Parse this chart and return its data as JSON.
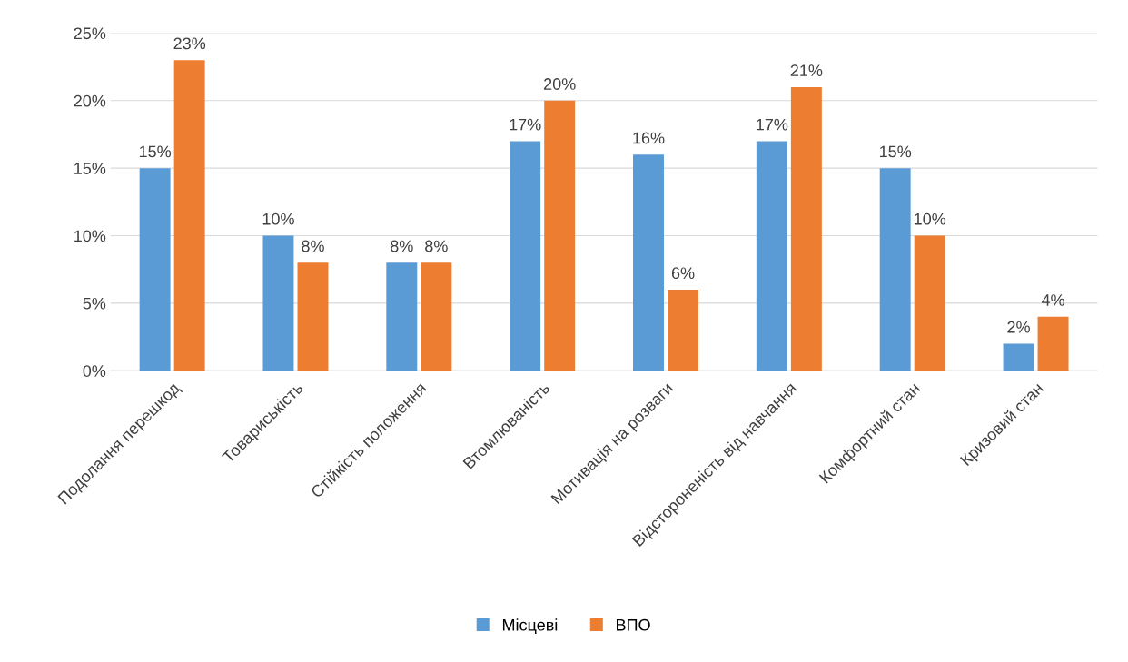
{
  "chart_data": {
    "type": "bar",
    "categories": [
      "Подолання перешкод",
      "Товариськість",
      "Стійкість положення",
      "Втомлюваність",
      "Мотивація на розваги",
      "Відстороненість від навчання",
      "Комфортний стан",
      "Кризовий стан"
    ],
    "series": [
      {
        "name": "Місцеві",
        "color": "#5b9bd5",
        "values": [
          15,
          10,
          8,
          17,
          16,
          17,
          15,
          2
        ],
        "value_labels": [
          "15%",
          "10%",
          "8%",
          "17%",
          "16%",
          "17%",
          "15%",
          "2%"
        ]
      },
      {
        "name": "ВПО",
        "color": "#ed7d31",
        "values": [
          23,
          8,
          8,
          20,
          6,
          21,
          10,
          4
        ],
        "value_labels": [
          "23%",
          "8%",
          "8%",
          "20%",
          "6%",
          "21%",
          "10%",
          "4%"
        ]
      }
    ],
    "ylim": [
      0,
      25
    ],
    "yticks": [
      {
        "value": 0,
        "label": "0%"
      },
      {
        "value": 5,
        "label": "5%"
      },
      {
        "value": 10,
        "label": "10%"
      },
      {
        "value": 15,
        "label": "15%"
      },
      {
        "value": 20,
        "label": "20%"
      },
      {
        "value": 25,
        "label": "25%"
      }
    ],
    "grid": "y",
    "legend": "bottom"
  }
}
